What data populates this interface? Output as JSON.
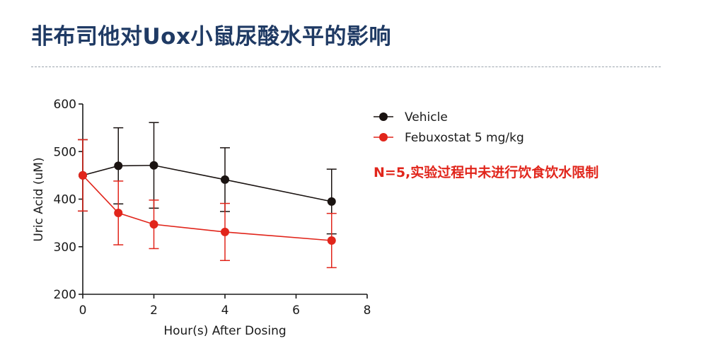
{
  "header": {
    "title": "非布司他对Uox小鼠尿酸水平的影响"
  },
  "note": "N=5,实验过程中未进行饮食饮水限制",
  "colors": {
    "title": "#1f3a64",
    "vehicle": "#1a1311",
    "febuxostat": "#e1251b",
    "note": "#e1251b"
  },
  "chart_data": {
    "type": "line",
    "title": "",
    "xlabel": "Hour(s) After Dosing",
    "ylabel": "Uric Acid (uM)",
    "xlim": [
      0,
      8
    ],
    "ylim": [
      200,
      600
    ],
    "x_ticks": [
      0,
      2,
      4,
      6,
      8
    ],
    "y_ticks": [
      200,
      300,
      400,
      500,
      600
    ],
    "grid": false,
    "legend": "right",
    "error_bars": true,
    "series": [
      {
        "name": "Vehicle",
        "color": "#1a1311",
        "x": [
          0,
          1,
          2,
          4,
          7
        ],
        "y": [
          450,
          470,
          471,
          441,
          395
        ],
        "err": [
          75,
          80,
          90,
          67,
          68
        ]
      },
      {
        "name": "Febuxostat 5 mg/kg",
        "color": "#e1251b",
        "x": [
          0,
          1,
          2,
          4,
          7
        ],
        "y": [
          450,
          371,
          347,
          331,
          313
        ],
        "err": [
          75,
          67,
          51,
          60,
          57
        ]
      }
    ]
  }
}
